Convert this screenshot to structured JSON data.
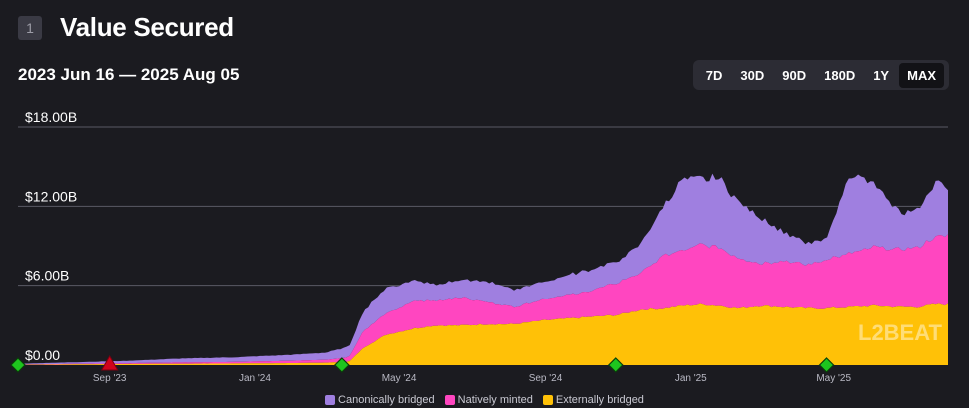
{
  "header": {
    "number": "1",
    "title": "Value Secured"
  },
  "date_range": "2023 Jun 16 — 2025 Aug 05",
  "timeframes": [
    {
      "label": "7D",
      "active": false
    },
    {
      "label": "30D",
      "active": false
    },
    {
      "label": "90D",
      "active": false
    },
    {
      "label": "180D",
      "active": false
    },
    {
      "label": "1Y",
      "active": false
    },
    {
      "label": "MAX",
      "active": true
    }
  ],
  "watermark": "L2BEAT",
  "chart_data": {
    "type": "area",
    "stacked": true,
    "ylim": [
      0,
      18
    ],
    "y_ticks": [
      {
        "value": 0,
        "label": "$0.00"
      },
      {
        "value": 6,
        "label": "$6.00B"
      },
      {
        "value": 12,
        "label": "$12.00B"
      },
      {
        "value": 18,
        "label": "$18.00B"
      }
    ],
    "x_ticks": [
      {
        "date": "2023-09-01",
        "label": "Sep '23"
      },
      {
        "date": "2024-01-01",
        "label": "Jan '24"
      },
      {
        "date": "2024-05-01",
        "label": "May '24"
      },
      {
        "date": "2024-09-01",
        "label": "Sep '24"
      },
      {
        "date": "2025-01-01",
        "label": "Jan '25"
      },
      {
        "date": "2025-05-01",
        "label": "May '25"
      }
    ],
    "x": [
      "2023-06-16",
      "2023-08-01",
      "2023-09-15",
      "2023-11-01",
      "2023-12-15",
      "2024-02-01",
      "2024-03-01",
      "2024-03-20",
      "2024-04-01",
      "2024-04-20",
      "2024-05-15",
      "2024-06-01",
      "2024-06-20",
      "2024-07-15",
      "2024-08-05",
      "2024-09-01",
      "2024-10-01",
      "2024-11-01",
      "2024-11-20",
      "2024-12-10",
      "2024-12-25",
      "2025-01-10",
      "2025-01-25",
      "2025-02-10",
      "2025-03-01",
      "2025-03-20",
      "2025-04-08",
      "2025-04-25",
      "2025-05-15",
      "2025-06-05",
      "2025-06-25",
      "2025-07-10",
      "2025-07-25",
      "2025-08-05"
    ],
    "series": [
      {
        "name": "Externally bridged",
        "color": "#ffc107",
        "values": [
          0.02,
          0.05,
          0.08,
          0.1,
          0.12,
          0.15,
          0.18,
          0.25,
          1.3,
          2.3,
          2.8,
          3.0,
          3.0,
          3.1,
          3.1,
          3.4,
          3.6,
          3.8,
          4.2,
          4.3,
          4.5,
          4.6,
          4.5,
          4.3,
          4.5,
          4.4,
          4.3,
          4.3,
          4.4,
          4.5,
          4.4,
          4.4,
          4.6,
          4.6
        ]
      },
      {
        "name": "Natively minted",
        "color": "#ff46c0",
        "values": [
          0.02,
          0.04,
          0.06,
          0.1,
          0.12,
          0.18,
          0.22,
          0.35,
          1.3,
          1.6,
          2.1,
          1.9,
          2.1,
          1.7,
          1.3,
          1.6,
          1.8,
          2.4,
          2.8,
          4.0,
          4.1,
          4.5,
          4.4,
          3.8,
          3.2,
          3.5,
          3.2,
          3.7,
          4.0,
          4.4,
          4.3,
          4.5,
          5.0,
          5.2
        ]
      },
      {
        "name": "Canonically bridged",
        "color": "#9f7fe0",
        "values": [
          0.06,
          0.12,
          0.18,
          0.3,
          0.35,
          0.45,
          0.55,
          0.8,
          1.5,
          1.9,
          1.5,
          1.2,
          1.3,
          1.5,
          1.3,
          1.3,
          1.6,
          1.6,
          2.2,
          3.8,
          5.4,
          4.9,
          5.3,
          4.3,
          3.5,
          2.2,
          1.6,
          1.6,
          6.1,
          4.6,
          2.8,
          2.8,
          4.2,
          3.5
        ]
      }
    ],
    "events": [
      {
        "date": "2023-06-16",
        "kind": "green-diamond"
      },
      {
        "date": "2023-09-01",
        "kind": "red-triangle"
      },
      {
        "date": "2024-03-14",
        "kind": "green-diamond"
      },
      {
        "date": "2024-10-30",
        "kind": "green-diamond"
      },
      {
        "date": "2025-04-25",
        "kind": "green-diamond"
      }
    ],
    "legend": [
      "Canonically bridged",
      "Natively minted",
      "Externally bridged"
    ],
    "legend_position": "bottom-center",
    "grid": true
  }
}
